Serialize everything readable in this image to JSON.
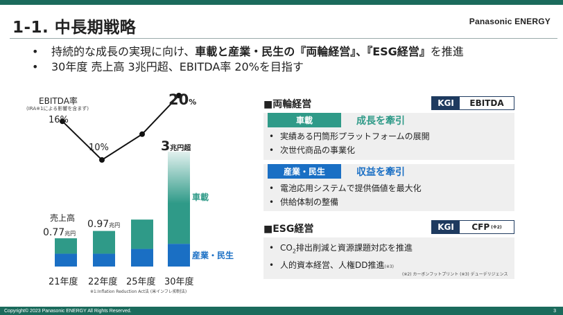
{
  "header": {
    "title": "1-1. 中長期戦略",
    "logo": "Panasonic ENERGY"
  },
  "bullets": {
    "line1_prefix": "持続的な成長の実現に向け、",
    "line1_bold": "車載と産業・民生の『両輪経営』、『ESG経営』",
    "line1_suffix": "を推進",
    "line2": "30年度 売上高 3兆円超、EBITDA率 20%を目指す"
  },
  "chart_data": {
    "type": "bar",
    "categories": [
      "21年度",
      "22年度",
      "25年度",
      "30年度"
    ],
    "series": [
      {
        "name": "車載",
        "values": [
          0.42,
          0.62,
          0.8,
          2.5
        ]
      },
      {
        "name": "産業・民生",
        "values": [
          0.35,
          0.35,
          0.48,
          0.62
        ]
      }
    ],
    "sales_title": "売上高",
    "sales_labels": [
      {
        "value": "0.77",
        "unit": "兆円"
      },
      {
        "value": "0.97",
        "unit": "兆円"
      },
      {
        "value": "",
        "unit": ""
      },
      {
        "value": "3",
        "unit": "兆円超"
      }
    ],
    "ebitda": {
      "title": "EBITDA率",
      "note": "(IRA※1による影響を含まず)",
      "values": [
        16,
        10,
        14,
        20
      ],
      "labels": [
        "16%",
        "10%",
        "",
        "20"
      ],
      "last_unit": "%"
    },
    "footnote": "※1:Inflation Reduction Act法 (米インフレ抑制法)",
    "colors": {
      "auto": "#2f9a88",
      "industrial": "#1a6fc4"
    }
  },
  "ryourin": {
    "heading": "■両輪経営",
    "kgi_label": "KGI",
    "kgi_value": "EBITDA",
    "auto": {
      "tag": "車載",
      "headline": "成長を牽引",
      "items": [
        "実績ある円筒形プラットフォームの展開",
        "次世代商品の事業化"
      ],
      "color": "#2f9a88"
    },
    "industrial": {
      "tag": "産業・民生",
      "headline": "収益を牽引",
      "items": [
        "電池応用システムで提供価値を最大化",
        "供給体制の整備"
      ],
      "color": "#1a6fc4"
    }
  },
  "esg": {
    "heading": "■ESG経営",
    "kgi_label": "KGI",
    "kgi_value": "CFP",
    "kgi_note": "(※2)",
    "item1_pre": "CO",
    "item1_sub": "2",
    "item1_post": "排出削減と資源課題対応を推進",
    "item2": "人的資本経営、人権DD推進",
    "item2_note": "(※3)",
    "note": "(※2) カーボンフットプリント (※3) デューデリジェンス"
  },
  "footer": {
    "copyright": "Copyright© 2023 Panasonic ENERGY All Rights Reserved.",
    "page": "3"
  }
}
